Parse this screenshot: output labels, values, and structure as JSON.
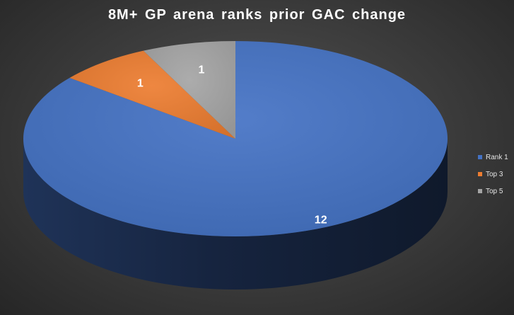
{
  "chart_data": {
    "type": "pie",
    "title": "8M+ GP arena ranks prior GAC change",
    "categories": [
      "Rank 1",
      "Top 3",
      "Top 5"
    ],
    "values": [
      12,
      1,
      1
    ],
    "data_labels": [
      "12",
      "1",
      "1"
    ],
    "colors": [
      "#4472c4",
      "#ed7d31",
      "#a5a5a5"
    ],
    "legend_position": "right",
    "style": "3d"
  }
}
